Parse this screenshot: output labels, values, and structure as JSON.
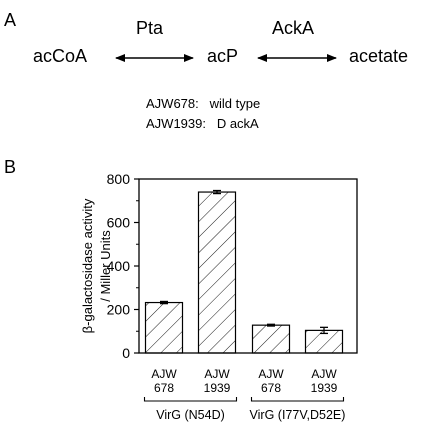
{
  "panel_a": {
    "letter": "A",
    "pathway": {
      "substrate": "acCoA",
      "intermediate": "acP",
      "product": "acetate",
      "enzyme1": "Pta",
      "enzyme2": "AckA"
    },
    "strains": [
      {
        "id": "AJW678:",
        "description": "wild type"
      },
      {
        "id": "AJW1939:",
        "description": "D ackA"
      }
    ]
  },
  "panel_b": {
    "letter": "B"
  },
  "chart_data": {
    "type": "bar",
    "ylabel_line1": "β-galactosidase activity",
    "ylabel_line2": "/ Miller Units",
    "ylim": [
      0,
      800
    ],
    "yticks": [
      0,
      200,
      400,
      600,
      800
    ],
    "categories": [
      {
        "line1": "AJW",
        "line2": "678"
      },
      {
        "line1": "AJW",
        "line2": "1939"
      },
      {
        "line1": "AJW",
        "line2": "678"
      },
      {
        "line1": "AJW",
        "line2": "1939"
      }
    ],
    "values": [
      232,
      740,
      128,
      104
    ],
    "errors": [
      5,
      7,
      4,
      14
    ],
    "groups": [
      {
        "label": "VirG (N54D)",
        "start": 0,
        "end": 1
      },
      {
        "label": "VirG (I77V,D52E)",
        "start": 2,
        "end": 3
      }
    ],
    "bar_fill": "hatched",
    "grid": false
  }
}
